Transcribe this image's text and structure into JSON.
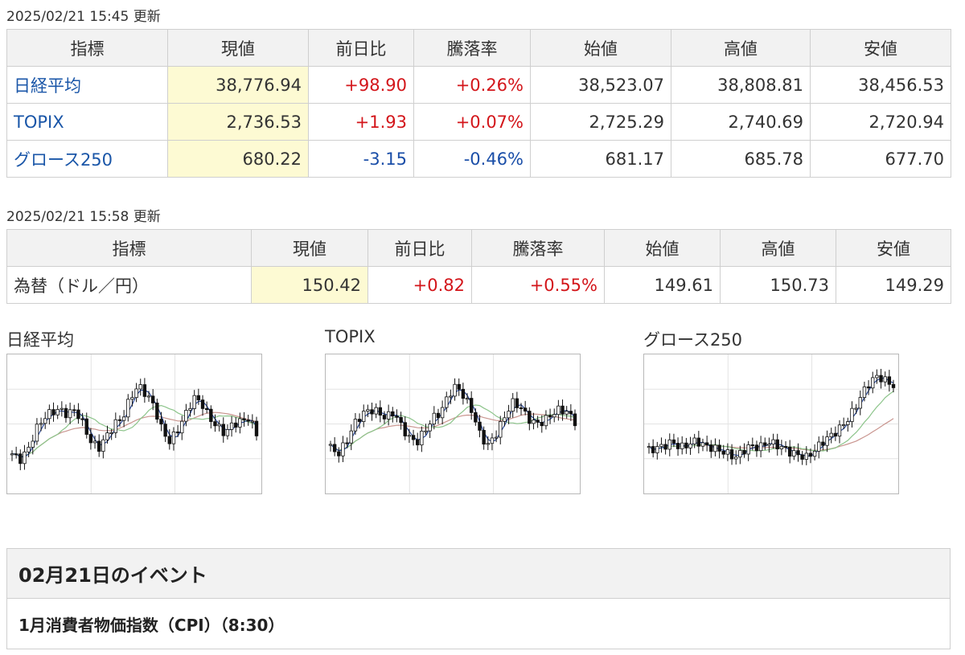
{
  "stocks": {
    "updated": "2025/02/21 15:45 更新",
    "headers": [
      "指標",
      "現値",
      "前日比",
      "騰落率",
      "始値",
      "高値",
      "安値"
    ],
    "rows": [
      {
        "name": "日経平均",
        "current": "38,776.94",
        "change": "+98.90",
        "pct": "+0.26%",
        "open": "38,523.07",
        "high": "38,808.81",
        "low": "38,456.53",
        "dir": "up"
      },
      {
        "name": "TOPIX",
        "current": "2,736.53",
        "change": "+1.93",
        "pct": "+0.07%",
        "open": "2,725.29",
        "high": "2,740.69",
        "low": "2,720.94",
        "dir": "up"
      },
      {
        "name": "グロース250",
        "current": "680.22",
        "change": "-3.15",
        "pct": "-0.46%",
        "open": "681.17",
        "high": "685.78",
        "low": "677.70",
        "dir": "down"
      }
    ]
  },
  "fx": {
    "updated": "2025/02/21 15:58 更新",
    "headers": [
      "指標",
      "現値",
      "前日比",
      "騰落率",
      "始値",
      "高値",
      "安値"
    ],
    "rows": [
      {
        "name": "為替（ドル／円）",
        "current": "150.42",
        "change": "+0.82",
        "pct": "+0.55%",
        "open": "149.61",
        "high": "150.73",
        "low": "149.29",
        "dir": "up"
      }
    ]
  },
  "charts": [
    {
      "title": "日経平均",
      "path": [
        0.25,
        0.2,
        0.28,
        0.45,
        0.55,
        0.6,
        0.62,
        0.58,
        0.62,
        0.5,
        0.35,
        0.3,
        0.4,
        0.5,
        0.55,
        0.72,
        0.82,
        0.75,
        0.65,
        0.45,
        0.35,
        0.45,
        0.58,
        0.72,
        0.68,
        0.55,
        0.48,
        0.42,
        0.5,
        0.52,
        0.55,
        0.42
      ]
    },
    {
      "title": "TOPIX",
      "path": [
        0.3,
        0.25,
        0.35,
        0.5,
        0.58,
        0.62,
        0.6,
        0.55,
        0.6,
        0.48,
        0.38,
        0.35,
        0.45,
        0.55,
        0.6,
        0.75,
        0.82,
        0.72,
        0.6,
        0.4,
        0.32,
        0.42,
        0.55,
        0.68,
        0.65,
        0.55,
        0.5,
        0.52,
        0.58,
        0.62,
        0.6,
        0.52
      ]
    },
    {
      "title": "グロース250",
      "path": [
        0.28,
        0.3,
        0.32,
        0.35,
        0.3,
        0.33,
        0.36,
        0.32,
        0.3,
        0.28,
        0.25,
        0.22,
        0.28,
        0.32,
        0.3,
        0.35,
        0.33,
        0.3,
        0.26,
        0.24,
        0.22,
        0.28,
        0.35,
        0.4,
        0.45,
        0.52,
        0.62,
        0.75,
        0.85,
        0.9,
        0.86,
        0.82
      ]
    }
  ],
  "event": {
    "heading": "02月21日のイベント",
    "items": [
      "1月消費者物価指数（CPI）（8:30）"
    ]
  },
  "colors": {
    "up": "#d3151a",
    "down": "#1a4ea8",
    "current_bg": "#fdfad3",
    "link": "#1a56a8"
  }
}
